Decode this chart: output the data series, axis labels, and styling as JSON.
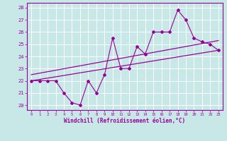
{
  "xlabel": "Windchill (Refroidissement éolien,°C)",
  "xlim": [
    -0.5,
    23.5
  ],
  "ylim": [
    19.6,
    28.4
  ],
  "yticks": [
    20,
    21,
    22,
    23,
    24,
    25,
    26,
    27,
    28
  ],
  "xticks": [
    0,
    1,
    2,
    3,
    4,
    5,
    6,
    7,
    8,
    9,
    10,
    11,
    12,
    13,
    14,
    15,
    16,
    17,
    18,
    19,
    20,
    21,
    22,
    23
  ],
  "bg_color": "#c8e8e8",
  "grid_color": "#b0d0d0",
  "line_color": "#990099",
  "data_x": [
    0,
    1,
    2,
    3,
    4,
    5,
    6,
    7,
    8,
    9,
    10,
    11,
    12,
    13,
    14,
    15,
    16,
    17,
    18,
    19,
    20,
    21,
    22,
    23
  ],
  "data_y": [
    22,
    22,
    22,
    22,
    21,
    20.2,
    20,
    22,
    21,
    22.5,
    25.5,
    23,
    23,
    24.8,
    24.2,
    26,
    26,
    26,
    27.8,
    27,
    25.5,
    25.2,
    25,
    24.5
  ],
  "trend1_x": [
    0,
    23
  ],
  "trend1_y": [
    22.0,
    24.5
  ],
  "trend2_x": [
    0,
    23
  ],
  "trend2_y": [
    22.5,
    25.3
  ],
  "trend3_x": [
    0,
    23
  ],
  "trend3_y": [
    22.0,
    25.2
  ]
}
